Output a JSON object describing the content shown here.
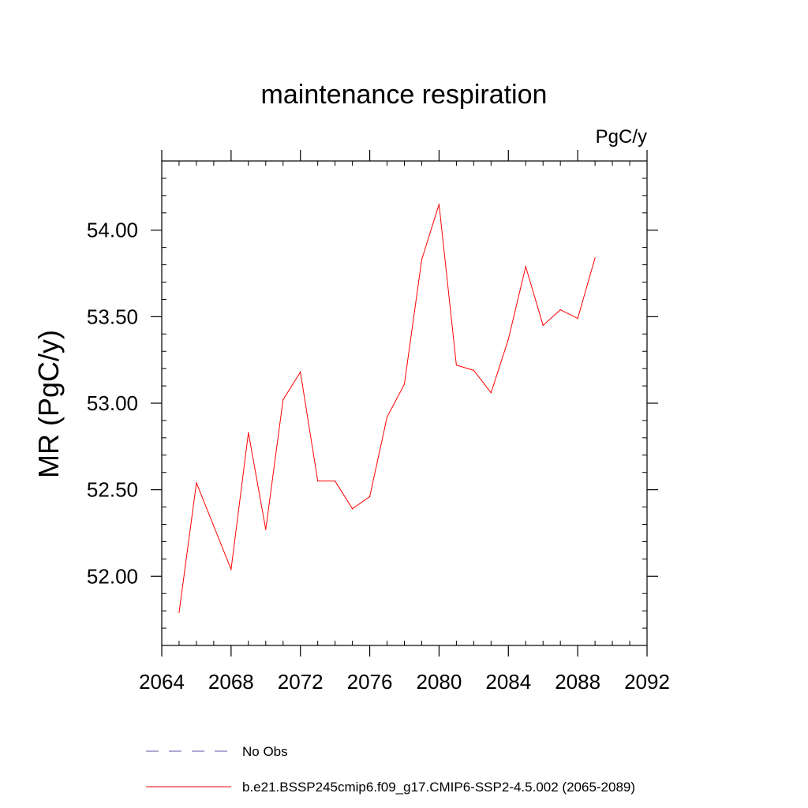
{
  "chart_data": {
    "type": "line",
    "title": "maintenance respiration",
    "units": "PgC/y",
    "ylabel": "MR  (PgC/y)",
    "xlabel": "",
    "xlim": [
      2064,
      2092
    ],
    "ylim": [
      51.6,
      54.4
    ],
    "x_ticks": [
      2064,
      2068,
      2072,
      2076,
      2080,
      2084,
      2088,
      2092
    ],
    "x_tick_labels": [
      "2064",
      "2068",
      "2072",
      "2076",
      "2080",
      "2084",
      "2088",
      "2092"
    ],
    "y_ticks": [
      52.0,
      52.5,
      53.0,
      53.5,
      54.0
    ],
    "y_tick_labels": [
      "52.00",
      "52.50",
      "53.00",
      "53.50",
      "54.00"
    ],
    "grid": false,
    "legend_position": "bottom",
    "series": [
      {
        "name": "b.e21.BSSP245cmip6.f09_g17.CMIP6-SSP2-4.5.002 (2065-2089)",
        "color": "#ff0000",
        "dash": "solid",
        "x": [
          2065,
          2066,
          2067,
          2068,
          2069,
          2070,
          2071,
          2072,
          2073,
          2074,
          2075,
          2076,
          2077,
          2078,
          2079,
          2080,
          2081,
          2082,
          2083,
          2084,
          2085,
          2086,
          2087,
          2088,
          2089
        ],
        "y": [
          51.79,
          52.54,
          52.29,
          52.04,
          52.83,
          52.27,
          53.02,
          53.18,
          52.55,
          52.55,
          52.39,
          52.46,
          52.92,
          53.11,
          53.83,
          54.15,
          53.22,
          53.19,
          53.06,
          53.37,
          53.79,
          53.45,
          53.54,
          53.49,
          53.84
        ]
      }
    ],
    "legend": [
      {
        "label": "No Obs",
        "color": "#5a5aaa",
        "dash": "dashed"
      },
      {
        "label": "b.e21.BSSP245cmip6.f09_g17.CMIP6-SSP2-4.5.002 (2065-2089)",
        "color": "#ff0000",
        "dash": "solid"
      }
    ]
  }
}
